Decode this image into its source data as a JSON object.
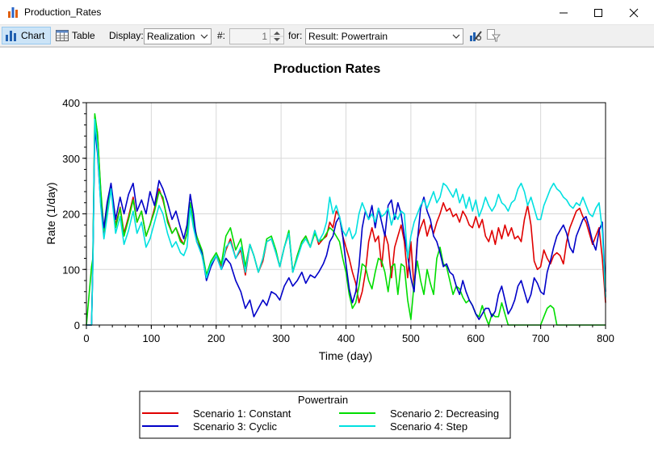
{
  "window": {
    "title": "Production_Rates"
  },
  "toolbar": {
    "chart_label": "Chart",
    "table_label": "Table",
    "display_label": "Display:",
    "display_value": "Realization",
    "number_label": "#:",
    "number_value": "1",
    "for_label": "for:",
    "for_value": "Result: Powertrain"
  },
  "chart_data": {
    "type": "line",
    "title": "Production Rates",
    "xlabel": "Time (day)",
    "ylabel": "Rate (1/day)",
    "xlim": [
      0,
      800
    ],
    "ylim": [
      0,
      400
    ],
    "xticks": [
      "0",
      "100",
      "200",
      "300",
      "400",
      "500",
      "600",
      "700",
      "800"
    ],
    "yticks": [
      "0",
      "100",
      "200",
      "300",
      "400"
    ],
    "grid": true,
    "legend_title": "Powertrain",
    "legend_position": "bottom-center",
    "series": [
      {
        "name": "Scenario 1: Constant",
        "color": "#e00000",
        "x": [
          0,
          8,
          10,
          13,
          17,
          22,
          27,
          32,
          38,
          45,
          52,
          58,
          65,
          72,
          78,
          85,
          92,
          98,
          105,
          112,
          118,
          125,
          132,
          138,
          145,
          150,
          155,
          160,
          165,
          170,
          178,
          185,
          192,
          200,
          208,
          215,
          222,
          230,
          238,
          245,
          252,
          258,
          265,
          272,
          278,
          285,
          292,
          298,
          305,
          312,
          318,
          325,
          332,
          338,
          345,
          352,
          358,
          365,
          370,
          375,
          380,
          385,
          390,
          395,
          400,
          405,
          410,
          415,
          420,
          425,
          430,
          435,
          440,
          445,
          450,
          455,
          460,
          465,
          470,
          475,
          480,
          485,
          490,
          495,
          500,
          505,
          510,
          515,
          520,
          525,
          530,
          535,
          540,
          545,
          550,
          555,
          560,
          565,
          570,
          575,
          580,
          585,
          590,
          595,
          600,
          605,
          610,
          615,
          620,
          625,
          630,
          635,
          640,
          645,
          650,
          655,
          660,
          665,
          670,
          675,
          680,
          685,
          690,
          695,
          700,
          705,
          710,
          715,
          720,
          725,
          730,
          735,
          740,
          745,
          750,
          755,
          760,
          765,
          770,
          775,
          780,
          785,
          790,
          795,
          800
        ],
        "y": [
          0,
          0,
          120,
          375,
          345,
          240,
          160,
          205,
          252,
          180,
          212,
          165,
          195,
          230,
          185,
          205,
          160,
          180,
          210,
          245,
          225,
          190,
          165,
          175,
          155,
          145,
          165,
          215,
          185,
          160,
          130,
          85,
          110,
          125,
          105,
          135,
          155,
          120,
          135,
          90,
          145,
          125,
          95,
          115,
          150,
          155,
          130,
          105,
          140,
          165,
          95,
          125,
          150,
          160,
          140,
          170,
          145,
          155,
          160,
          185,
          175,
          205,
          195,
          160,
          140,
          120,
          95,
          75,
          40,
          60,
          95,
          150,
          175,
          150,
          160,
          105,
          165,
          145,
          85,
          140,
          160,
          180,
          150,
          85,
          150,
          65,
          155,
          175,
          190,
          160,
          180,
          165,
          185,
          200,
          220,
          205,
          210,
          195,
          200,
          185,
          205,
          195,
          180,
          175,
          195,
          175,
          190,
          160,
          150,
          170,
          145,
          175,
          155,
          180,
          160,
          175,
          155,
          160,
          150,
          190,
          215,
          180,
          115,
          100,
          105,
          135,
          120,
          110,
          125,
          130,
          125,
          110,
          150,
          175,
          190,
          205,
          210,
          195,
          185,
          165,
          145,
          160,
          175,
          120,
          40
        ]
      },
      {
        "name": "Scenario 2: Decreasing",
        "color": "#00dd00",
        "x": [
          0,
          8,
          10,
          13,
          17,
          22,
          27,
          32,
          38,
          45,
          52,
          58,
          65,
          72,
          78,
          85,
          92,
          98,
          105,
          112,
          118,
          125,
          132,
          138,
          145,
          150,
          155,
          160,
          165,
          170,
          178,
          185,
          192,
          200,
          208,
          215,
          222,
          230,
          238,
          245,
          252,
          258,
          265,
          272,
          278,
          285,
          292,
          298,
          305,
          312,
          318,
          325,
          332,
          338,
          345,
          352,
          358,
          365,
          370,
          375,
          380,
          385,
          390,
          395,
          400,
          405,
          410,
          415,
          420,
          425,
          430,
          435,
          440,
          445,
          450,
          455,
          460,
          465,
          470,
          475,
          480,
          485,
          490,
          495,
          500,
          505,
          510,
          515,
          520,
          525,
          530,
          535,
          540,
          545,
          550,
          555,
          560,
          565,
          570,
          575,
          580,
          585,
          590,
          595,
          600,
          605,
          610,
          615,
          620,
          625,
          630,
          635,
          640,
          645,
          650,
          655,
          660,
          665,
          670,
          675,
          680,
          685,
          690,
          695,
          700,
          705,
          710,
          715,
          720,
          725,
          730,
          735,
          740,
          745,
          750,
          755,
          760,
          765,
          770,
          775,
          780,
          785,
          790,
          795,
          800
        ],
        "y": [
          0,
          105,
          120,
          380,
          345,
          245,
          170,
          205,
          252,
          175,
          210,
          160,
          190,
          225,
          185,
          205,
          160,
          180,
          205,
          240,
          230,
          185,
          165,
          175,
          150,
          145,
          165,
          220,
          185,
          160,
          135,
          90,
          115,
          130,
          110,
          160,
          175,
          135,
          155,
          105,
          145,
          125,
          95,
          120,
          155,
          160,
          135,
          105,
          140,
          170,
          95,
          125,
          150,
          160,
          140,
          165,
          150,
          155,
          165,
          175,
          170,
          160,
          150,
          120,
          95,
          55,
          30,
          40,
          70,
          110,
          105,
          80,
          65,
          95,
          120,
          115,
          95,
          60,
          105,
          110,
          55,
          110,
          105,
          45,
          10,
          75,
          115,
          80,
          55,
          100,
          75,
          55,
          120,
          140,
          110,
          105,
          80,
          55,
          70,
          65,
          50,
          40,
          45,
          35,
          20,
          15,
          35,
          15,
          0,
          20,
          15,
          15,
          40,
          20,
          0,
          0,
          0,
          0,
          0,
          0,
          0,
          0,
          0,
          0,
          0,
          15,
          30,
          35,
          30,
          0,
          0,
          0,
          0,
          0,
          0,
          0,
          0,
          0,
          0,
          0,
          0,
          0,
          0,
          0,
          0
        ]
      },
      {
        "name": "Scenario 3: Cyclic",
        "color": "#0000c8",
        "x": [
          0,
          8,
          10,
          13,
          17,
          22,
          27,
          32,
          38,
          45,
          52,
          58,
          65,
          72,
          78,
          85,
          92,
          98,
          105,
          112,
          118,
          125,
          132,
          138,
          145,
          150,
          155,
          160,
          165,
          170,
          178,
          185,
          192,
          200,
          208,
          215,
          222,
          230,
          238,
          245,
          252,
          258,
          265,
          272,
          278,
          285,
          292,
          298,
          305,
          312,
          318,
          325,
          332,
          338,
          345,
          352,
          358,
          365,
          370,
          375,
          380,
          385,
          390,
          395,
          400,
          405,
          410,
          415,
          420,
          425,
          430,
          435,
          440,
          445,
          450,
          455,
          460,
          465,
          470,
          475,
          480,
          485,
          490,
          495,
          500,
          505,
          510,
          515,
          520,
          525,
          530,
          535,
          540,
          545,
          550,
          555,
          560,
          565,
          570,
          575,
          580,
          585,
          590,
          595,
          600,
          605,
          610,
          615,
          620,
          625,
          630,
          635,
          640,
          645,
          650,
          655,
          660,
          665,
          670,
          675,
          680,
          685,
          690,
          695,
          700,
          705,
          710,
          715,
          720,
          725,
          730,
          735,
          740,
          745,
          750,
          755,
          760,
          765,
          770,
          775,
          780,
          785,
          790,
          795,
          800
        ],
        "y": [
          0,
          0,
          110,
          355,
          310,
          220,
          175,
          220,
          255,
          190,
          230,
          200,
          235,
          255,
          205,
          225,
          200,
          240,
          215,
          260,
          245,
          220,
          190,
          205,
          175,
          155,
          180,
          235,
          200,
          150,
          130,
          80,
          105,
          125,
          100,
          120,
          110,
          80,
          60,
          30,
          45,
          15,
          30,
          45,
          35,
          60,
          55,
          45,
          70,
          85,
          70,
          80,
          95,
          75,
          90,
          85,
          95,
          110,
          125,
          150,
          160,
          185,
          195,
          160,
          110,
          65,
          40,
          60,
          105,
          175,
          205,
          190,
          215,
          175,
          210,
          185,
          160,
          215,
          225,
          190,
          220,
          200,
          160,
          125,
          85,
          60,
          150,
          210,
          230,
          205,
          190,
          160,
          150,
          130,
          105,
          110,
          95,
          90,
          70,
          55,
          80,
          60,
          45,
          35,
          20,
          10,
          20,
          30,
          30,
          15,
          25,
          55,
          70,
          45,
          20,
          30,
          45,
          70,
          80,
          60,
          40,
          55,
          85,
          75,
          60,
          55,
          95,
          115,
          140,
          160,
          170,
          180,
          165,
          140,
          130,
          160,
          175,
          190,
          195,
          175,
          150,
          135,
          170,
          185,
          60
        ]
      },
      {
        "name": "Scenario 4: Step",
        "color": "#00e0e0",
        "x": [
          0,
          8,
          10,
          13,
          17,
          22,
          27,
          32,
          38,
          45,
          52,
          58,
          65,
          72,
          78,
          85,
          92,
          98,
          105,
          112,
          118,
          125,
          132,
          138,
          145,
          150,
          155,
          160,
          165,
          170,
          178,
          185,
          192,
          200,
          208,
          215,
          222,
          230,
          238,
          245,
          252,
          258,
          265,
          272,
          278,
          285,
          292,
          298,
          305,
          312,
          318,
          325,
          332,
          338,
          345,
          352,
          358,
          365,
          370,
          375,
          380,
          385,
          390,
          395,
          400,
          405,
          410,
          415,
          420,
          425,
          430,
          435,
          440,
          445,
          450,
          455,
          460,
          465,
          470,
          475,
          480,
          485,
          490,
          495,
          500,
          505,
          510,
          515,
          520,
          525,
          530,
          535,
          540,
          545,
          550,
          555,
          560,
          565,
          570,
          575,
          580,
          585,
          590,
          595,
          600,
          605,
          610,
          615,
          620,
          625,
          630,
          635,
          640,
          645,
          650,
          655,
          660,
          665,
          670,
          675,
          680,
          685,
          690,
          695,
          700,
          705,
          710,
          715,
          720,
          725,
          730,
          735,
          740,
          745,
          750,
          755,
          760,
          765,
          770,
          775,
          780,
          785,
          790,
          795,
          800
        ],
        "y": [
          0,
          0,
          110,
          370,
          320,
          215,
          155,
          195,
          245,
          165,
          195,
          145,
          170,
          205,
          165,
          185,
          140,
          155,
          185,
          215,
          200,
          165,
          140,
          150,
          130,
          125,
          140,
          210,
          175,
          150,
          125,
          85,
          110,
          125,
          100,
          140,
          150,
          120,
          140,
          95,
          145,
          125,
          95,
          120,
          150,
          155,
          130,
          105,
          140,
          165,
          95,
          120,
          145,
          155,
          140,
          170,
          150,
          165,
          185,
          230,
          200,
          215,
          195,
          170,
          160,
          175,
          155,
          165,
          200,
          220,
          205,
          190,
          200,
          185,
          210,
          195,
          200,
          210,
          180,
          200,
          190,
          205,
          200,
          120,
          160,
          185,
          200,
          215,
          225,
          210,
          225,
          240,
          220,
          230,
          255,
          250,
          240,
          230,
          245,
          220,
          235,
          210,
          230,
          205,
          225,
          195,
          210,
          230,
          215,
          205,
          215,
          235,
          220,
          215,
          205,
          220,
          225,
          245,
          255,
          240,
          215,
          230,
          210,
          190,
          190,
          215,
          230,
          245,
          255,
          245,
          240,
          230,
          225,
          215,
          210,
          220,
          215,
          230,
          215,
          200,
          195,
          210,
          220,
          170,
          50
        ]
      }
    ]
  }
}
